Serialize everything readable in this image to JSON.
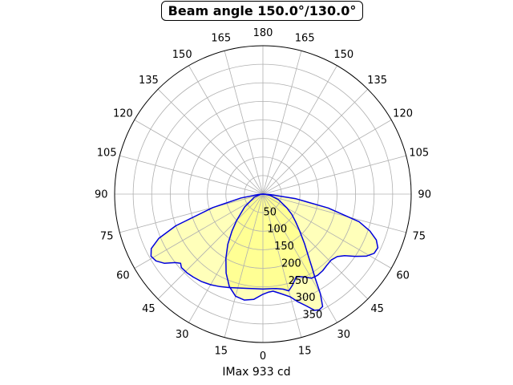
{
  "chart_data": {
    "type": "polar",
    "title": "Beam angle 150.0°/130.0°",
    "xlabel": "IMax 933 cd",
    "angle_labels": [
      "180",
      "165",
      "150",
      "135",
      "120",
      "105",
      "90",
      "75",
      "60",
      "45",
      "30",
      "15",
      "0",
      "15",
      "30",
      "45",
      "60",
      "75",
      "90",
      "105",
      "120",
      "135",
      "150",
      "165"
    ],
    "radial_ticks": [
      50,
      100,
      150,
      200,
      250,
      300,
      350
    ],
    "rmax": 400,
    "grid": true,
    "series": [
      {
        "values_deg_cd": [
          [
            -85,
            12
          ],
          [
            -80,
            60
          ],
          [
            -75,
            140
          ],
          [
            -70,
            250
          ],
          [
            -67,
            305
          ],
          [
            -64,
            335
          ],
          [
            -61,
            345
          ],
          [
            -58,
            340
          ],
          [
            -55,
            325
          ],
          [
            -52,
            300
          ],
          [
            -50,
            290
          ],
          [
            -48,
            296
          ],
          [
            -44,
            295
          ],
          [
            -40,
            292
          ],
          [
            -35,
            288
          ],
          [
            -30,
            282
          ],
          [
            -25,
            275
          ],
          [
            -20,
            268
          ],
          [
            -15,
            262
          ],
          [
            -10,
            258
          ],
          [
            -5,
            256
          ],
          [
            0,
            256
          ],
          [
            5,
            256
          ],
          [
            8,
            257
          ],
          [
            12,
            262
          ],
          [
            15,
            270
          ],
          [
            18,
            258
          ],
          [
            22,
            240
          ],
          [
            26,
            248
          ],
          [
            30,
            262
          ],
          [
            34,
            264
          ],
          [
            38,
            262
          ],
          [
            42,
            258
          ],
          [
            46,
            256
          ],
          [
            50,
            262
          ],
          [
            53,
            276
          ],
          [
            56,
            300
          ],
          [
            59,
            325
          ],
          [
            62,
            340
          ],
          [
            65,
            342
          ],
          [
            68,
            330
          ],
          [
            71,
            305
          ],
          [
            74,
            270
          ],
          [
            78,
            180
          ],
          [
            82,
            90
          ],
          [
            86,
            20
          ]
        ]
      },
      {
        "values_deg_cd": [
          [
            -85,
            6
          ],
          [
            -70,
            25
          ],
          [
            -55,
            60
          ],
          [
            -45,
            100
          ],
          [
            -40,
            130
          ],
          [
            -35,
            165
          ],
          [
            -30,
            200
          ],
          [
            -25,
            235
          ],
          [
            -20,
            265
          ],
          [
            -15,
            285
          ],
          [
            -10,
            290
          ],
          [
            -5,
            285
          ],
          [
            0,
            270
          ],
          [
            3,
            265
          ],
          [
            6,
            263
          ],
          [
            10,
            272
          ],
          [
            15,
            287
          ],
          [
            18,
            305
          ],
          [
            21,
            322
          ],
          [
            24,
            343
          ],
          [
            26,
            347
          ],
          [
            28,
            343
          ],
          [
            30,
            310
          ],
          [
            32,
            265
          ],
          [
            34,
            235
          ],
          [
            36,
            210
          ],
          [
            40,
            175
          ],
          [
            45,
            140
          ],
          [
            50,
            115
          ],
          [
            55,
            95
          ],
          [
            60,
            75
          ],
          [
            70,
            45
          ],
          [
            80,
            20
          ],
          [
            85,
            6
          ]
        ]
      }
    ],
    "colors": {
      "fill": "#ffff66",
      "line": "#0000dd",
      "grid": "#b0b0b0"
    }
  }
}
